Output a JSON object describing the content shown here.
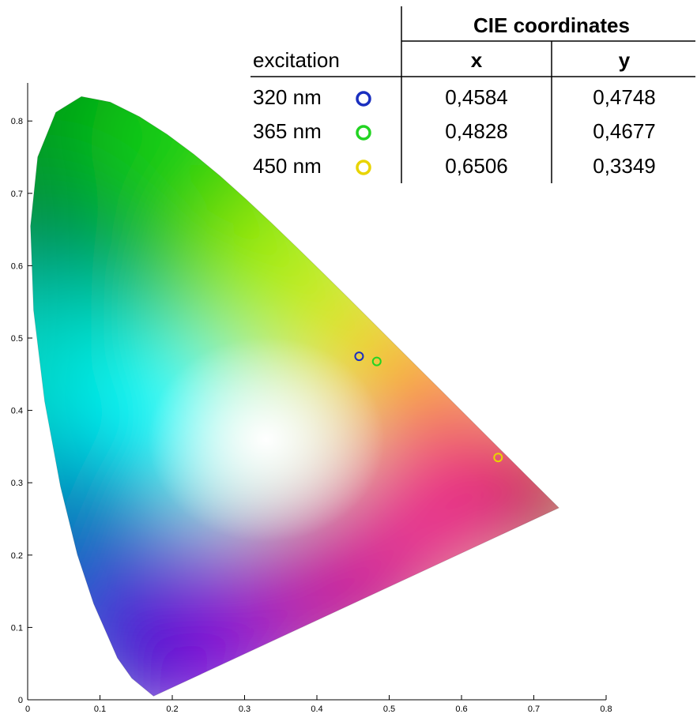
{
  "chart_data": {
    "type": "scatter",
    "xlim": [
      0,
      0.8
    ],
    "ylim": [
      0,
      0.85
    ],
    "x_ticks": [
      "0",
      "0.1",
      "0.2",
      "0.3",
      "0.4",
      "0.5",
      "0.6",
      "0.7",
      "0.8"
    ],
    "y_ticks": [
      "0",
      "0.1",
      "0.2",
      "0.3",
      "0.4",
      "0.5",
      "0.6",
      "0.7",
      "0.8"
    ],
    "grid": false,
    "background": "CIE 1931 chromaticity diagram (spectral locus filled with colors)",
    "series": [
      {
        "name": "320 nm",
        "x": 0.4584,
        "y": 0.4748,
        "color": "#1a2fbf"
      },
      {
        "name": "365 nm",
        "x": 0.4828,
        "y": 0.4677,
        "color": "#22d422"
      },
      {
        "name": "450 nm",
        "x": 0.6506,
        "y": 0.3349,
        "color": "#e8d400"
      }
    ],
    "locus": [
      [
        0.1741,
        0.005
      ],
      [
        0.144,
        0.0297
      ],
      [
        0.1241,
        0.0578
      ],
      [
        0.0913,
        0.1327
      ],
      [
        0.0687,
        0.2007
      ],
      [
        0.0454,
        0.295
      ],
      [
        0.0235,
        0.4127
      ],
      [
        0.0082,
        0.5384
      ],
      [
        0.0039,
        0.6548
      ],
      [
        0.0139,
        0.7502
      ],
      [
        0.0389,
        0.812
      ],
      [
        0.0743,
        0.8338
      ],
      [
        0.1142,
        0.8262
      ],
      [
        0.1547,
        0.8059
      ],
      [
        0.1929,
        0.7816
      ],
      [
        0.2296,
        0.7543
      ],
      [
        0.2658,
        0.7243
      ],
      [
        0.3016,
        0.6923
      ],
      [
        0.3373,
        0.6589
      ],
      [
        0.3731,
        0.6245
      ],
      [
        0.4087,
        0.5896
      ],
      [
        0.4441,
        0.5547
      ],
      [
        0.4788,
        0.5202
      ],
      [
        0.5125,
        0.4866
      ],
      [
        0.5448,
        0.4544
      ],
      [
        0.5752,
        0.4242
      ],
      [
        0.6029,
        0.3965
      ],
      [
        0.627,
        0.3725
      ],
      [
        0.6482,
        0.3514
      ],
      [
        0.6658,
        0.334
      ],
      [
        0.6915,
        0.3083
      ],
      [
        0.7347,
        0.2653
      ]
    ],
    "table": {
      "header_group": "CIE coordinates",
      "columns": [
        "excitation",
        "x",
        "y"
      ],
      "rows": [
        {
          "excitation": "320 nm",
          "marker_color": "#1a2fbf",
          "x": "0,4584",
          "y": "0,4748"
        },
        {
          "excitation": "365 nm",
          "marker_color": "#22d422",
          "x": "0,4828",
          "y": "0,4677"
        },
        {
          "excitation": "450 nm",
          "marker_color": "#e8d400",
          "x": "0,6506",
          "y": "0,3349"
        }
      ]
    }
  }
}
